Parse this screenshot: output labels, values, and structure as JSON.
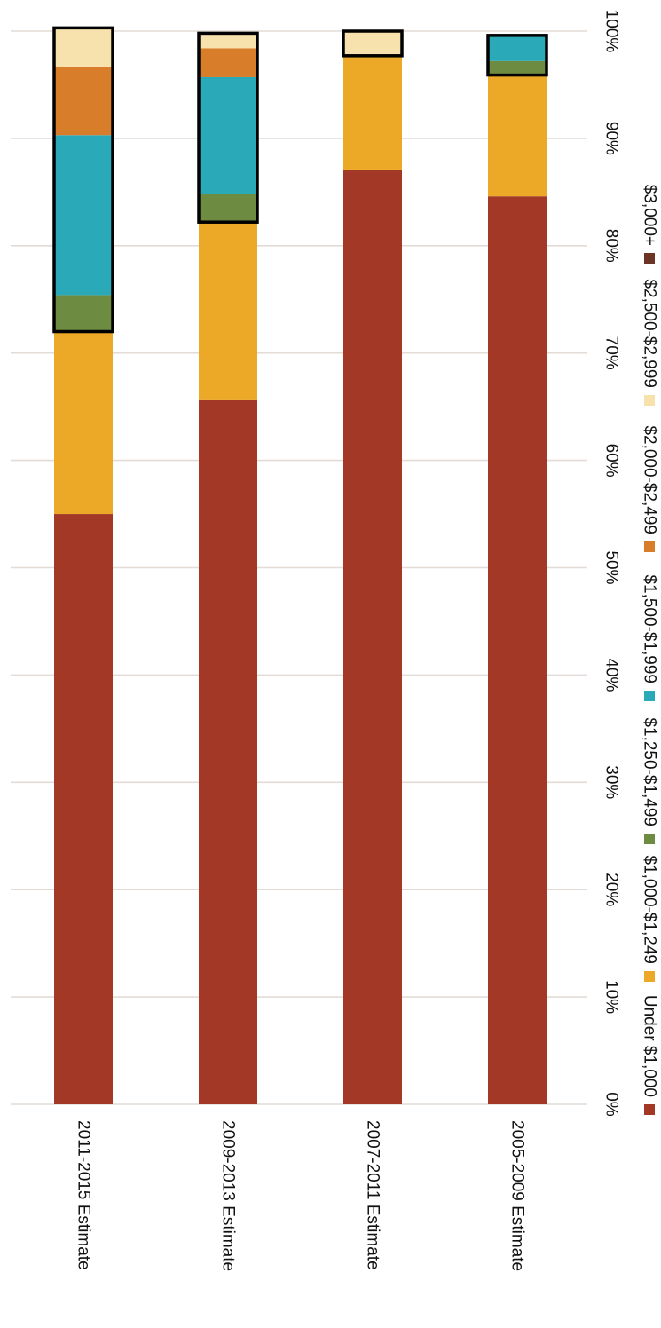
{
  "chart_data": {
    "type": "bar",
    "stacked": true,
    "normalized": true,
    "orientation": "horizontal",
    "rotated": "90deg clockwise",
    "title": "",
    "xlabel": "",
    "ylabel": "",
    "ylim": [
      0,
      100
    ],
    "y_ticks": [
      "0%",
      "10%",
      "20%",
      "30%",
      "40%",
      "50%",
      "60%",
      "70%",
      "80%",
      "90%",
      "100%"
    ],
    "grid": true,
    "legend_position": "right",
    "categories": [
      "2011-2015 Estimate",
      "2009-2013 Estimate",
      "2007-2011 Estimate",
      "2005-2009 Estimate"
    ],
    "series": [
      {
        "name": "Under $1,000",
        "color": "#A23825",
        "values": [
          55.0,
          65.6,
          87.1,
          84.6
        ]
      },
      {
        "name": "$1,000-$1,249",
        "color": "#ECA927",
        "values": [
          17.0,
          16.6,
          10.6,
          11.3
        ]
      },
      {
        "name": "$1,250-$1,499",
        "color": "#6E8C41",
        "values": [
          3.4,
          2.6,
          0.0,
          1.3
        ]
      },
      {
        "name": "$1,500-$1,999",
        "color": "#2AAAB9",
        "values": [
          14.9,
          10.9,
          0.0,
          2.4
        ]
      },
      {
        "name": "$2,000-$2,499",
        "color": "#D87E2A",
        "values": [
          6.4,
          2.7,
          0.0,
          0.0
        ]
      },
      {
        "name": "$2,500-$2,999",
        "color": "#F7E1AC",
        "values": [
          3.6,
          1.4,
          2.3,
          0.0
        ]
      },
      {
        "name": "$3,000+",
        "color": "#6B3425",
        "values": [
          0.0,
          0.0,
          0.0,
          0.0
        ]
      }
    ],
    "highlight_from_series_index": [
      2,
      2,
      5,
      2
    ]
  }
}
